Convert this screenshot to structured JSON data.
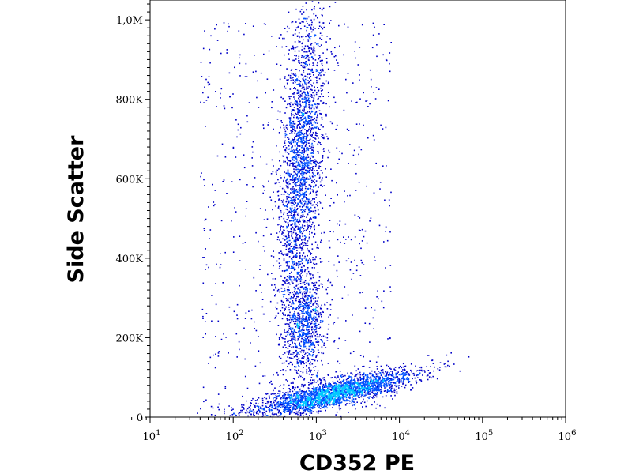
{
  "chart_data": {
    "type": "scatter",
    "subtype": "flow-cytometry density dot plot",
    "xlabel": "CD352 PE",
    "ylabel": "Side Scatter",
    "x_scale": "log",
    "xlim": [
      10,
      1000000
    ],
    "x_ticks": [
      {
        "value": 10,
        "base": "10",
        "exp": "1"
      },
      {
        "value": 100,
        "base": "10",
        "exp": "2"
      },
      {
        "value": 1000,
        "base": "10",
        "exp": "3"
      },
      {
        "value": 10000,
        "base": "10",
        "exp": "4"
      },
      {
        "value": 100000,
        "base": "10",
        "exp": "5"
      },
      {
        "value": 1000000,
        "base": "10",
        "exp": "6"
      }
    ],
    "y_scale": "linear",
    "ylim": [
      0,
      1050000
    ],
    "y_ticks": [
      {
        "value": 0,
        "label": "0"
      },
      {
        "value": 200000,
        "label": "200K"
      },
      {
        "value": 400000,
        "label": "400K"
      },
      {
        "value": 600000,
        "label": "600K"
      },
      {
        "value": 800000,
        "label": "800K"
      },
      {
        "value": 1000000,
        "label": "1,0M"
      }
    ],
    "grid": false,
    "density_colors": [
      "#0000c8",
      "#0050ff",
      "#00c8ff",
      "#28e628",
      "#ffff00",
      "#ff8c00",
      "#e60000"
    ],
    "populations": [
      {
        "name": "",
        "center_x": 1500,
        "center_y": 60000,
        "x_range": [
          80,
          6500
        ],
        "y_range": [
          10000,
          120000
        ]
      },
      {
        "name": "",
        "center_x": 700,
        "center_y": 240000,
        "x_range": [
          300,
          2000
        ],
        "y_range": [
          130000,
          380000
        ]
      },
      {
        "name": "",
        "center_x": 650,
        "center_y": 650000,
        "x_range": [
          350,
          1100
        ],
        "y_range": [
          400000,
          1050000
        ]
      }
    ]
  }
}
